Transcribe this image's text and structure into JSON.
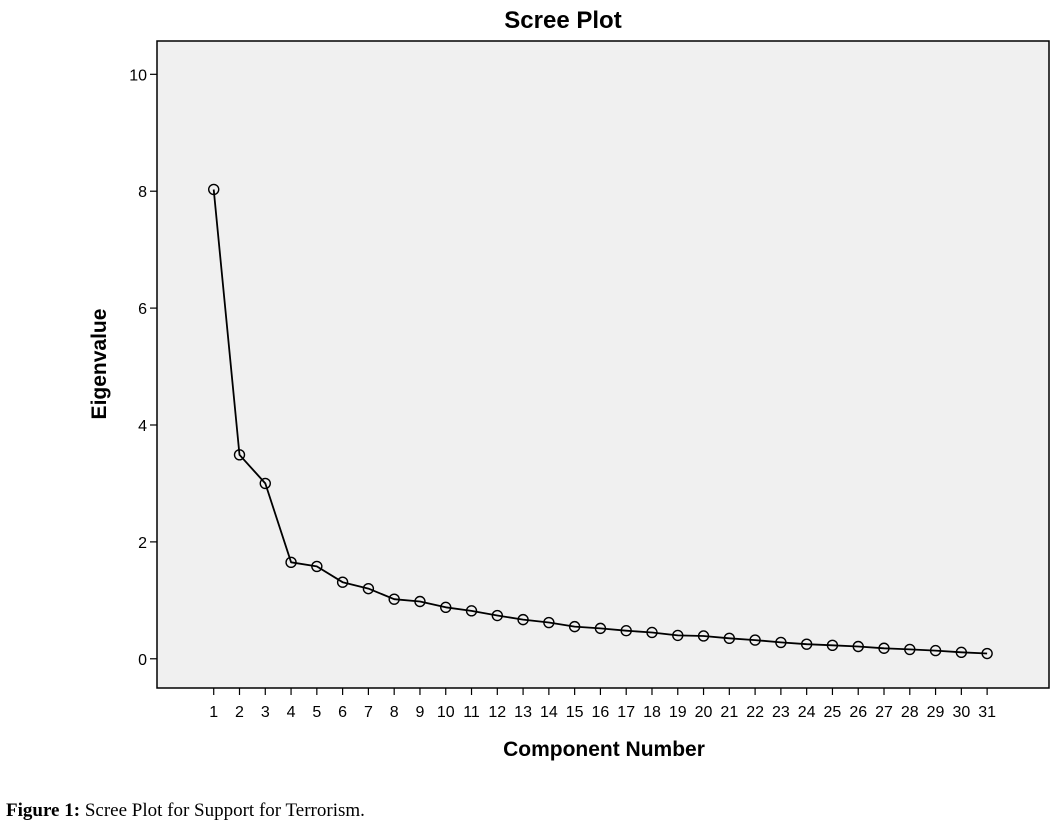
{
  "caption": {
    "label": "Figure 1:",
    "text": " Scree Plot for Support for Terrorism."
  },
  "chart_data": {
    "type": "line",
    "title": "Scree Plot",
    "xlabel": "Component Number",
    "ylabel": "Eigenvalue",
    "x": [
      1,
      2,
      3,
      4,
      5,
      6,
      7,
      8,
      9,
      10,
      11,
      12,
      13,
      14,
      15,
      16,
      17,
      18,
      19,
      20,
      21,
      22,
      23,
      24,
      25,
      26,
      27,
      28,
      29,
      30,
      31
    ],
    "series": [
      {
        "values": [
          8.03,
          3.49,
          3.0,
          1.65,
          1.58,
          1.31,
          1.2,
          1.02,
          0.98,
          0.88,
          0.82,
          0.74,
          0.67,
          0.62,
          0.55,
          0.52,
          0.48,
          0.45,
          0.4,
          0.39,
          0.35,
          0.32,
          0.28,
          0.25,
          0.23,
          0.21,
          0.18,
          0.16,
          0.14,
          0.11,
          0.09
        ]
      }
    ],
    "xticks": [
      "1",
      "2",
      "3",
      "4",
      "5",
      "6",
      "7",
      "8",
      "9",
      "10",
      "11",
      "12",
      "13",
      "14",
      "15",
      "16",
      "17",
      "18",
      "19",
      "20",
      "21",
      "22",
      "23",
      "24",
      "25",
      "26",
      "27",
      "28",
      "29",
      "30",
      "31"
    ],
    "yticks": [
      0,
      2,
      4,
      6,
      8,
      10
    ],
    "ylim": [
      -0.5,
      10.57
    ],
    "xlim": [
      -1.2,
      33.4
    ],
    "grid": false,
    "legend": "none",
    "marker": "hollow-circle",
    "colors": {
      "plot_background": "#f0f0f0",
      "line": "#000000",
      "marker_edge": "#000000",
      "marker_fill": "none"
    }
  }
}
